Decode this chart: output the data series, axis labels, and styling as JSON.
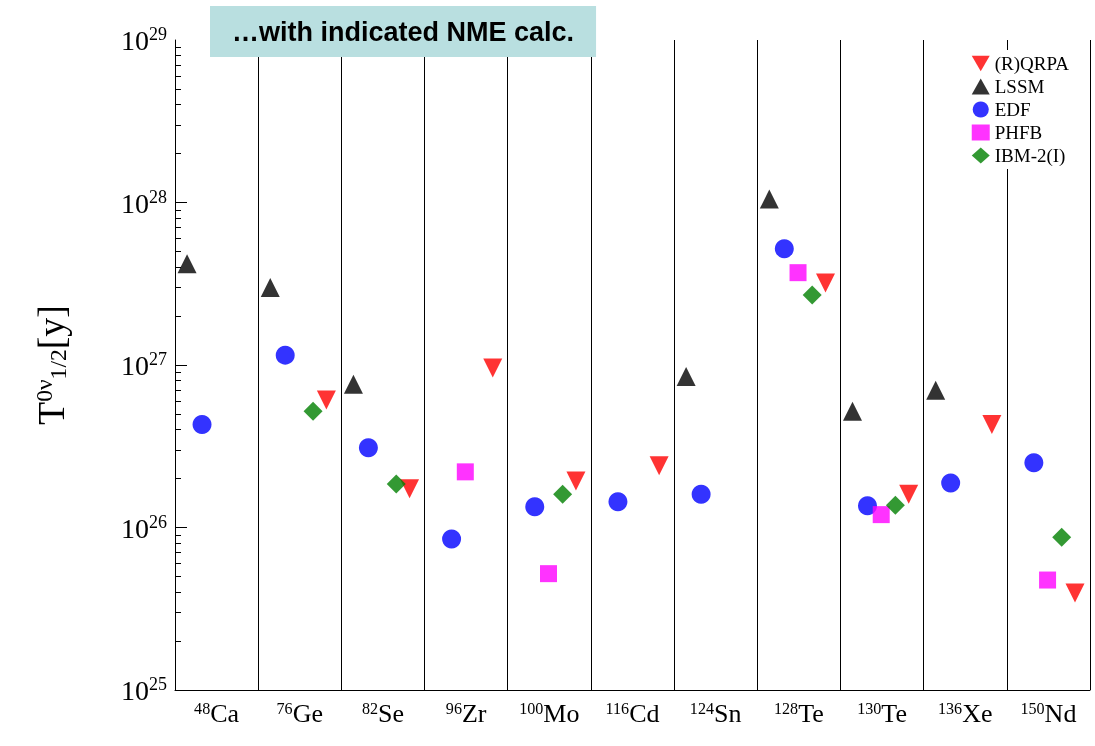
{
  "chart_data": {
    "type": "scatter",
    "title": "…with indicated NME calc.",
    "ylabel": "T$^{0ν}$$_{1/2}$[y]",
    "categories": [
      "$^{48}$Ca",
      "$^{76}$Ge",
      "$^{82}$Se",
      "$^{96}$Zr",
      "$^{100}$Mo",
      "$^{116}$Cd",
      "$^{124}$Sn",
      "$^{128}$Te",
      "$^{130}$Te",
      "$^{136}$Xe",
      "$^{150}$Nd"
    ],
    "series": [
      {
        "name": "(R)QRPA",
        "color": "#ff0000",
        "marker": "triangle-down",
        "values": [
          null,
          6.1e+26,
          1.73e+26,
          9.6e+26,
          1.93e+26,
          2.4e+26,
          null,
          3.2e+27,
          1.6e+26,
          4.3e+26,
          3.95e+25
        ]
      },
      {
        "name": "LSSM",
        "color": "#000000",
        "marker": "triangle",
        "values": [
          4.2e+27,
          3e+27,
          7.6e+26,
          null,
          null,
          null,
          8.5e+26,
          1.05e+28,
          5.2e+26,
          7e+26,
          null
        ]
      },
      {
        "name": "EDF",
        "color": "#0000ff",
        "marker": "circle",
        "values": [
          4.3e+26,
          1.15e+27,
          3.1e+26,
          8.5e+25,
          1.34e+26,
          1.44e+26,
          1.6e+26,
          5.2e+27,
          1.36e+26,
          1.88e+26,
          2.5e+26
        ]
      },
      {
        "name": "PHFB",
        "color": "#ff00ff",
        "marker": "square",
        "values": [
          null,
          null,
          null,
          2.2e+26,
          5.2e+25,
          null,
          null,
          3.7e+27,
          1.2e+26,
          null,
          4.75e+25
        ]
      },
      {
        "name": "IBM-2(I)",
        "color": "#008000",
        "marker": "diamond",
        "values": [
          null,
          5.2e+26,
          1.85e+26,
          null,
          1.6e+26,
          null,
          null,
          2.7e+27,
          1.37e+26,
          null,
          8.7e+25
        ]
      }
    ],
    "log": "y",
    "ylim": [
      1e+25,
      1e+29
    ],
    "yticks": [
      {
        "value": 1e+25,
        "label": "10$^{25}$"
      },
      {
        "value": 1e+26,
        "label": "10$^{26}$"
      },
      {
        "value": 1e+27,
        "label": "10$^{27}$"
      },
      {
        "value": 1e+28,
        "label": "10$^{28}$"
      },
      {
        "value": 1e+29,
        "label": "10$^{29}$"
      }
    ],
    "grid": "x",
    "legend": "top right"
  }
}
